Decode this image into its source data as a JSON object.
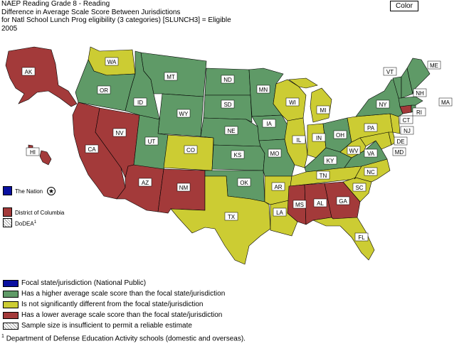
{
  "header": {
    "line1": "NAEP Reading Grade 8 - Reading",
    "line2": "Difference in Average Scale Score Between Jurisdictions",
    "line3": "for Natl School Lunch Prog eligibility (3 categories) [SLUNCH3] = Eligible",
    "line4": "2005"
  },
  "color_button": "Color",
  "colors": {
    "focal": "#0a10a0",
    "higher": "#5f9a67",
    "not_different": "#cccc33",
    "lower": "#a33a3a",
    "insufficient": "hatch"
  },
  "states": {
    "AK": "lower",
    "HI": "lower",
    "WA": "not_different",
    "OR": "higher",
    "CA": "lower",
    "NV": "lower",
    "ID": "higher",
    "MT": "higher",
    "WY": "higher",
    "UT": "higher",
    "AZ": "lower",
    "CO": "not_different",
    "NM": "lower",
    "ND": "higher",
    "SD": "higher",
    "NE": "higher",
    "KS": "higher",
    "OK": "higher",
    "TX": "not_different",
    "MN": "higher",
    "IA": "higher",
    "MO": "higher",
    "AR": "not_different",
    "LA": "not_different",
    "WI": "not_different",
    "IL": "not_different",
    "MS": "lower",
    "MI": "not_different",
    "IN": "not_different",
    "OH": "higher",
    "KY": "higher",
    "TN": "not_different",
    "AL": "lower",
    "GA": "lower",
    "FL": "not_different",
    "SC": "not_different",
    "NC": "not_different",
    "VA": "higher",
    "WV": "not_different",
    "PA": "not_different",
    "NY": "higher",
    "VT": "higher",
    "NH": "higher",
    "ME": "higher",
    "MA": "higher",
    "RI": "higher",
    "CT": "lower",
    "NJ": "not_different",
    "DE": "not_different",
    "MD": "not_different"
  },
  "side_items": {
    "nation": "The Nation",
    "dc": "District of Columbia",
    "dodea": "DoDEA",
    "dodea_sup": "1"
  },
  "legend": [
    {
      "key": "focal",
      "label": "Focal state/jurisdiction (National Public)"
    },
    {
      "key": "higher",
      "label": "Has a higher average scale score than the focal state/jurisdiction"
    },
    {
      "key": "not_different",
      "label": "Is not significantly different from the focal state/jurisdiction"
    },
    {
      "key": "lower",
      "label": "Has a lower average scale score than the focal state/jurisdiction"
    },
    {
      "key": "insufficient",
      "label": "Sample size is insufficient to permit a reliable estimate"
    }
  ],
  "footnote": {
    "sup": "1",
    "text": "Department of Defense Education Activity schools (domestic and overseas)."
  }
}
